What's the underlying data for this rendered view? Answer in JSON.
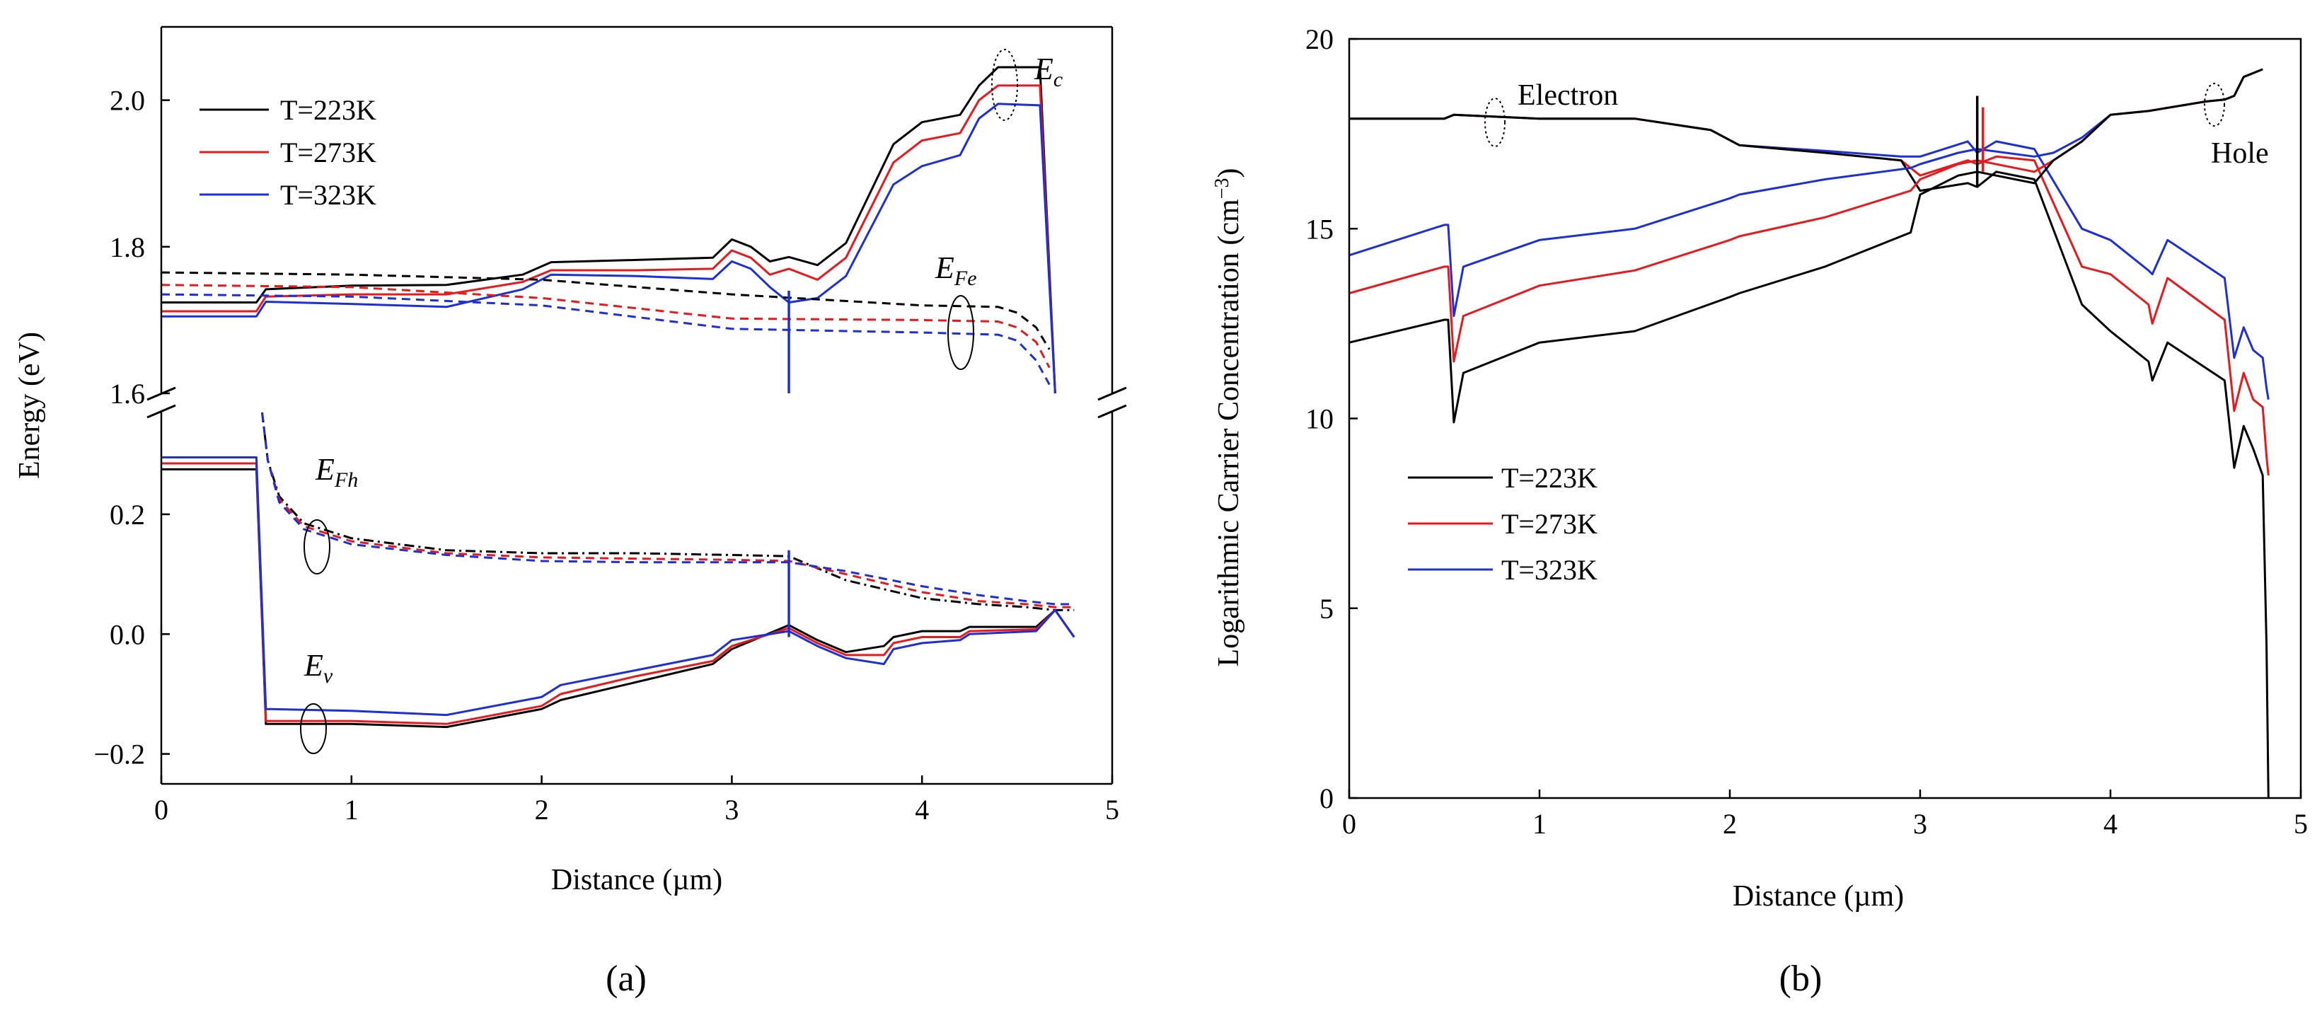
{
  "panels": {
    "a": {
      "caption": "(a)",
      "xlabel": "Distance (µm)",
      "ylabel": "Energy (eV)",
      "legend": [
        "T=223K",
        "T=273K",
        "T=323K"
      ],
      "annotations": {
        "Ec": "E",
        "Ec_sub": "c",
        "EFe": "E",
        "EFe_sub": "Fe",
        "EFh": "E",
        "EFh_sub": "Fh",
        "Ev": "E",
        "Ev_sub": "v"
      }
    },
    "b": {
      "caption": "(b)",
      "xlabel": "Distance (µm)",
      "ylabel": "Logarithmic Carrier Concentration (cm",
      "ylabel_sup": "−3",
      "ylabel_end": ")",
      "legend": [
        "T=223K",
        "T=273K",
        "T=323K"
      ],
      "annotations": {
        "electron": "Electron",
        "hole": "Hole"
      }
    }
  },
  "chart_data": [
    {
      "panel": "a",
      "type": "line",
      "title": "",
      "xlabel": "Distance (µm)",
      "ylabel": "Energy (eV)",
      "xlim": [
        0,
        5
      ],
      "y_upper_segment": [
        1.6,
        2.1
      ],
      "y_lower_segment": [
        -0.25,
        0.37
      ],
      "xticks": [
        "0",
        "1",
        "2",
        "3",
        "4",
        "5"
      ],
      "yticks_upper": [
        "1.6",
        "1.8",
        "2.0"
      ],
      "yticks_lower": [
        "−0.2",
        "0.0",
        "0.2"
      ],
      "legend_position": "top-left",
      "colors": {
        "T=223K": "#000000",
        "T=273K": "#e8191c",
        "T=323K": "#1d2fd6"
      },
      "series": [
        {
          "name": "Ec T=223K",
          "style": "solid",
          "x": [
            0,
            0.5,
            0.55,
            1.0,
            1.5,
            1.9,
            2.05,
            2.5,
            2.9,
            3.0,
            3.1,
            3.2,
            3.3,
            3.45,
            3.6,
            3.85,
            4.0,
            4.2,
            4.3,
            4.4,
            4.62,
            4.7
          ],
          "y": [
            1.724,
            1.724,
            1.742,
            1.747,
            1.748,
            1.762,
            1.779,
            1.782,
            1.785,
            1.81,
            1.8,
            1.78,
            1.786,
            1.775,
            1.805,
            1.94,
            1.97,
            1.98,
            2.02,
            2.045,
            2.045,
            1.6
          ]
        },
        {
          "name": "Ec T=273K",
          "style": "solid",
          "x": [
            0,
            0.5,
            0.55,
            1.0,
            1.5,
            1.9,
            2.05,
            2.5,
            2.9,
            3.0,
            3.1,
            3.2,
            3.3,
            3.45,
            3.6,
            3.85,
            4.0,
            4.2,
            4.3,
            4.4,
            4.62,
            4.7
          ],
          "y": [
            1.712,
            1.712,
            1.732,
            1.735,
            1.735,
            1.752,
            1.768,
            1.768,
            1.77,
            1.795,
            1.785,
            1.762,
            1.77,
            1.755,
            1.785,
            1.915,
            1.945,
            1.955,
            2.0,
            2.02,
            2.02,
            1.6
          ]
        },
        {
          "name": "Ec T=323K",
          "style": "solid",
          "x": [
            0,
            0.5,
            0.55,
            1.0,
            1.5,
            1.9,
            2.05,
            2.5,
            2.9,
            3.0,
            3.1,
            3.2,
            3.3,
            3.45,
            3.6,
            3.85,
            4.0,
            4.2,
            4.3,
            4.4,
            4.62,
            4.7
          ],
          "y": [
            1.705,
            1.705,
            1.725,
            1.722,
            1.718,
            1.742,
            1.762,
            1.76,
            1.756,
            1.78,
            1.77,
            1.745,
            1.724,
            1.73,
            1.76,
            1.885,
            1.91,
            1.925,
            1.975,
            1.995,
            1.993,
            1.6
          ]
        },
        {
          "name": "EFe T=223K",
          "style": "dashed",
          "x": [
            0,
            1.0,
            2.0,
            3.0,
            4.0,
            4.4,
            4.5,
            4.6,
            4.67
          ],
          "y": [
            1.765,
            1.762,
            1.755,
            1.735,
            1.72,
            1.718,
            1.71,
            1.69,
            1.66
          ]
        },
        {
          "name": "EFe T=273K",
          "style": "dashed",
          "x": [
            0,
            1.0,
            2.0,
            3.0,
            4.0,
            4.4,
            4.5,
            4.6,
            4.67
          ],
          "y": [
            1.748,
            1.745,
            1.73,
            1.702,
            1.7,
            1.698,
            1.69,
            1.67,
            1.635
          ]
        },
        {
          "name": "EFe T=323K",
          "style": "dashed",
          "x": [
            0,
            1.0,
            2.0,
            3.0,
            4.0,
            4.4,
            4.5,
            4.6,
            4.67
          ],
          "y": [
            1.735,
            1.732,
            1.72,
            1.688,
            1.683,
            1.68,
            1.672,
            1.645,
            1.612
          ]
        },
        {
          "name": "EFh T=223K",
          "style": "dash-dot",
          "x": [
            0.53,
            0.56,
            0.62,
            0.75,
            1.0,
            1.5,
            2.0,
            2.5,
            3.0,
            3.3,
            3.6,
            4.0,
            4.3,
            4.55,
            4.7,
            4.8
          ],
          "y": [
            0.37,
            0.29,
            0.23,
            0.185,
            0.16,
            0.14,
            0.135,
            0.135,
            0.132,
            0.13,
            0.09,
            0.06,
            0.05,
            0.045,
            0.04,
            0.04
          ]
        },
        {
          "name": "EFh T=273K",
          "style": "dashed",
          "x": [
            0.53,
            0.56,
            0.62,
            0.75,
            1.0,
            1.5,
            2.0,
            2.5,
            3.0,
            3.3,
            3.6,
            4.0,
            4.3,
            4.55,
            4.7,
            4.8
          ],
          "y": [
            0.37,
            0.29,
            0.225,
            0.18,
            0.155,
            0.135,
            0.128,
            0.126,
            0.124,
            0.122,
            0.1,
            0.07,
            0.055,
            0.05,
            0.045,
            0.045
          ]
        },
        {
          "name": "EFh T=323K",
          "style": "dashed",
          "x": [
            0.53,
            0.56,
            0.62,
            0.75,
            1.0,
            1.5,
            2.0,
            2.5,
            3.0,
            3.3,
            3.6,
            4.0,
            4.3,
            4.55,
            4.7,
            4.8
          ],
          "y": [
            0.37,
            0.29,
            0.22,
            0.175,
            0.15,
            0.132,
            0.122,
            0.12,
            0.12,
            0.12,
            0.105,
            0.08,
            0.065,
            0.055,
            0.05,
            0.05
          ]
        },
        {
          "name": "Ev T=223K",
          "style": "solid",
          "x": [
            0,
            0.5,
            0.55,
            1.0,
            1.5,
            2.0,
            2.1,
            2.5,
            2.9,
            3.0,
            3.3,
            3.45,
            3.6,
            3.8,
            3.85,
            4.0,
            4.2,
            4.25,
            4.6,
            4.7,
            4.8
          ],
          "y": [
            0.275,
            0.275,
            -0.15,
            -0.15,
            -0.155,
            -0.125,
            -0.11,
            -0.08,
            -0.05,
            -0.025,
            0.015,
            -0.01,
            -0.03,
            -0.02,
            -0.005,
            0.005,
            0.005,
            0.012,
            0.012,
            0.04,
            -0.005
          ]
        },
        {
          "name": "Ev T=273K",
          "style": "solid",
          "x": [
            0,
            0.5,
            0.55,
            1.0,
            1.5,
            2.0,
            2.1,
            2.5,
            2.9,
            3.0,
            3.3,
            3.45,
            3.6,
            3.8,
            3.85,
            4.0,
            4.2,
            4.25,
            4.6,
            4.7,
            4.8
          ],
          "y": [
            0.285,
            0.285,
            -0.145,
            -0.145,
            -0.15,
            -0.12,
            -0.1,
            -0.07,
            -0.045,
            -0.02,
            0.01,
            -0.015,
            -0.035,
            -0.035,
            -0.015,
            -0.005,
            -0.005,
            0.005,
            0.008,
            0.04,
            -0.005
          ]
        },
        {
          "name": "Ev T=323K",
          "style": "solid",
          "x": [
            0,
            0.5,
            0.55,
            1.0,
            1.5,
            2.0,
            2.1,
            2.5,
            2.9,
            3.0,
            3.3,
            3.45,
            3.6,
            3.8,
            3.85,
            4.0,
            4.2,
            4.25,
            4.6,
            4.7,
            4.8
          ],
          "y": [
            0.295,
            0.295,
            -0.125,
            -0.128,
            -0.135,
            -0.105,
            -0.085,
            -0.06,
            -0.035,
            -0.01,
            0.005,
            -0.02,
            -0.04,
            -0.05,
            -0.025,
            -0.015,
            -0.01,
            0.0,
            0.005,
            0.04,
            -0.005
          ]
        }
      ],
      "spikes": [
        {
          "x": 3.3,
          "from": 1.6,
          "to": 1.74,
          "color": "#1d2fd6"
        },
        {
          "x": 3.3,
          "from": -0.005,
          "to": 0.14,
          "color": "#1d2fd6"
        }
      ],
      "annotations": [
        "Ec",
        "EFe",
        "EFh",
        "Ev"
      ]
    },
    {
      "panel": "b",
      "type": "line",
      "title": "",
      "xlabel": "Distance (µm)",
      "ylabel": "Logarithmic Carrier Concentration (cm^-3)",
      "xlim": [
        0,
        5
      ],
      "ylim": [
        0,
        20
      ],
      "xticks": [
        "0",
        "1",
        "2",
        "3",
        "4",
        "5"
      ],
      "yticks": [
        "0",
        "5",
        "10",
        "15",
        "20"
      ],
      "legend_position": "center-left",
      "colors": {
        "T=223K": "#000000",
        "T=273K": "#e8191c",
        "T=323K": "#1d2fd6"
      },
      "series": [
        {
          "name": "Electron T=223K",
          "x": [
            0,
            0.5,
            0.55,
            1.0,
            1.5,
            1.9,
            2.05,
            2.5,
            2.9,
            3.0,
            3.25,
            3.3,
            3.4,
            3.6,
            3.85,
            4.0,
            4.2,
            4.22,
            4.3,
            4.6,
            4.65,
            4.7,
            4.75,
            4.8,
            4.82,
            4.83
          ],
          "y": [
            17.9,
            17.9,
            18.0,
            17.9,
            17.9,
            17.6,
            17.2,
            17.0,
            16.8,
            16.0,
            16.2,
            16.1,
            16.5,
            16.3,
            13.0,
            12.3,
            11.5,
            11.0,
            12.0,
            11.0,
            8.7,
            9.8,
            9.2,
            8.5,
            4.0,
            0.0
          ]
        },
        {
          "name": "Electron T=273K",
          "x": [
            0,
            0.5,
            0.55,
            1.0,
            1.5,
            1.9,
            2.05,
            2.5,
            2.9,
            3.0,
            3.25,
            3.3,
            3.4,
            3.6,
            3.85,
            4.0,
            4.2,
            4.22,
            4.3,
            4.6,
            4.65,
            4.7,
            4.75,
            4.8,
            4.82,
            4.83
          ],
          "y": [
            17.9,
            17.9,
            18.0,
            17.9,
            17.9,
            17.6,
            17.2,
            17.0,
            16.8,
            16.4,
            16.8,
            16.7,
            16.9,
            16.8,
            14.0,
            13.8,
            13.0,
            12.5,
            13.7,
            12.6,
            10.2,
            11.2,
            10.5,
            10.3,
            9.0,
            8.5
          ]
        },
        {
          "name": "Electron T=323K",
          "x": [
            0,
            0.5,
            0.55,
            1.0,
            1.5,
            1.9,
            2.05,
            2.5,
            2.9,
            3.0,
            3.25,
            3.3,
            3.4,
            3.6,
            3.85,
            4.0,
            4.2,
            4.22,
            4.3,
            4.6,
            4.65,
            4.7,
            4.75,
            4.8,
            4.82,
            4.83
          ],
          "y": [
            17.9,
            17.9,
            18.0,
            17.9,
            17.9,
            17.6,
            17.2,
            17.05,
            16.9,
            16.9,
            17.3,
            17.0,
            17.3,
            17.1,
            15.0,
            14.7,
            13.9,
            13.8,
            14.7,
            13.7,
            11.6,
            12.4,
            11.8,
            11.6,
            10.8,
            10.5
          ]
        },
        {
          "name": "Hole T=223K",
          "x": [
            0,
            0.5,
            0.52,
            0.55,
            0.6,
            1.0,
            1.5,
            2.0,
            2.05,
            2.5,
            2.95,
            3.0,
            3.2,
            3.3,
            3.6,
            3.7,
            3.85,
            4.0,
            4.2,
            4.5,
            4.6,
            4.65,
            4.7,
            4.8
          ],
          "y": [
            12.0,
            12.6,
            12.6,
            9.9,
            11.2,
            12.0,
            12.3,
            13.2,
            13.3,
            14.0,
            14.9,
            15.9,
            16.4,
            16.5,
            16.2,
            16.8,
            17.3,
            18.0,
            18.1,
            18.35,
            18.4,
            18.5,
            19.0,
            19.2
          ]
        },
        {
          "name": "Hole T=273K",
          "x": [
            0,
            0.5,
            0.52,
            0.55,
            0.6,
            1.0,
            1.5,
            2.0,
            2.05,
            2.5,
            2.95,
            3.0,
            3.2,
            3.3,
            3.6,
            3.7,
            3.85,
            4.0,
            4.2,
            4.5,
            4.6,
            4.65,
            4.7,
            4.8
          ],
          "y": [
            13.3,
            14.0,
            14.0,
            11.5,
            12.7,
            13.5,
            13.9,
            14.7,
            14.8,
            15.3,
            16.0,
            16.3,
            16.7,
            16.8,
            16.5,
            16.8,
            17.3,
            18.0,
            18.1,
            18.35,
            18.4,
            18.5,
            19.0,
            19.2
          ]
        },
        {
          "name": "Hole T=323K",
          "x": [
            0,
            0.5,
            0.52,
            0.55,
            0.6,
            1.0,
            1.5,
            2.0,
            2.05,
            2.5,
            2.95,
            3.0,
            3.2,
            3.3,
            3.6,
            3.7,
            3.85,
            4.0,
            4.2,
            4.5,
            4.6,
            4.65,
            4.7,
            4.8
          ],
          "y": [
            14.3,
            15.1,
            15.1,
            12.7,
            14.0,
            14.7,
            15.0,
            15.8,
            15.9,
            16.3,
            16.6,
            16.7,
            17.0,
            17.1,
            16.9,
            17.0,
            17.4,
            18.0,
            18.1,
            18.35,
            18.4,
            18.5,
            19.0,
            19.2
          ]
        }
      ],
      "spikes": [
        {
          "x": 3.3,
          "from": 16.1,
          "to": 18.5,
          "color": "#000000"
        },
        {
          "x": 3.33,
          "from": 16.5,
          "to": 18.2,
          "color": "#e8191c"
        }
      ],
      "annotations": [
        "Electron",
        "Hole"
      ]
    }
  ]
}
